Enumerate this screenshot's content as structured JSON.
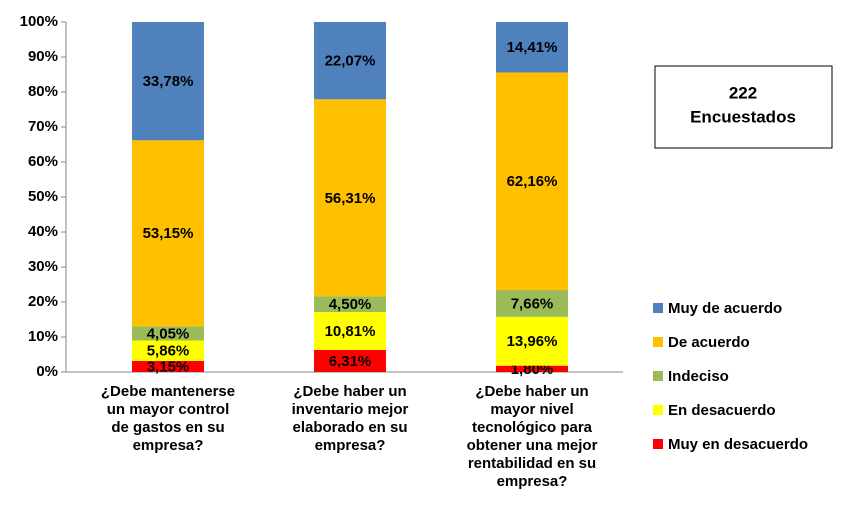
{
  "chart_data": {
    "type": "stacked_bar",
    "categories": [
      "¿Debe mantenerse un mayor control de gastos en su empresa?",
      "¿Debe haber un inventario mejor elaborado en su empresa?",
      "¿Debe haber un mayor nivel tecnológico para obtener una mejor rentabilidad en su empresa?"
    ],
    "series": [
      {
        "name": "Muy en desacuerdo",
        "color": "#ff0000",
        "values": [
          3.15,
          6.31,
          1.8
        ],
        "value_labels": [
          "3,15%",
          "6,31%",
          "1,80%"
        ]
      },
      {
        "name": "En desacuerdo",
        "color": "#ffff00",
        "values": [
          5.86,
          10.81,
          13.96
        ],
        "value_labels": [
          "5,86%",
          "10,81%",
          "13,96%"
        ]
      },
      {
        "name": "Indeciso",
        "color": "#9bbb59",
        "values": [
          4.05,
          4.5,
          7.66
        ],
        "value_labels": [
          "4,05%",
          "4,50%",
          "7,66%"
        ]
      },
      {
        "name": "De acuerdo",
        "color": "#ffc000",
        "values": [
          53.15,
          56.31,
          62.16
        ],
        "value_labels": [
          "53,15%",
          "56,31%",
          "62,16%"
        ]
      },
      {
        "name": "Muy de acuerdo",
        "color": "#4f81bd",
        "values": [
          33.78,
          22.07,
          14.41
        ],
        "value_labels": [
          "33,78%",
          "22,07%",
          "14,41%"
        ]
      }
    ],
    "ylim": [
      0,
      100
    ],
    "yticks": [
      {
        "value": 0,
        "label": "0%"
      },
      {
        "value": 10,
        "label": "10%"
      },
      {
        "value": 20,
        "label": "20%"
      },
      {
        "value": 30,
        "label": "30%"
      },
      {
        "value": 40,
        "label": "40%"
      },
      {
        "value": 50,
        "label": "50%"
      },
      {
        "value": 60,
        "label": "60%"
      },
      {
        "value": 70,
        "label": "70%"
      },
      {
        "value": 80,
        "label": "80%"
      },
      {
        "value": 90,
        "label": "90%"
      },
      {
        "value": 100,
        "label": "100%"
      }
    ],
    "annotation": [
      "222",
      "Encuestados"
    ],
    "legend": "right"
  }
}
